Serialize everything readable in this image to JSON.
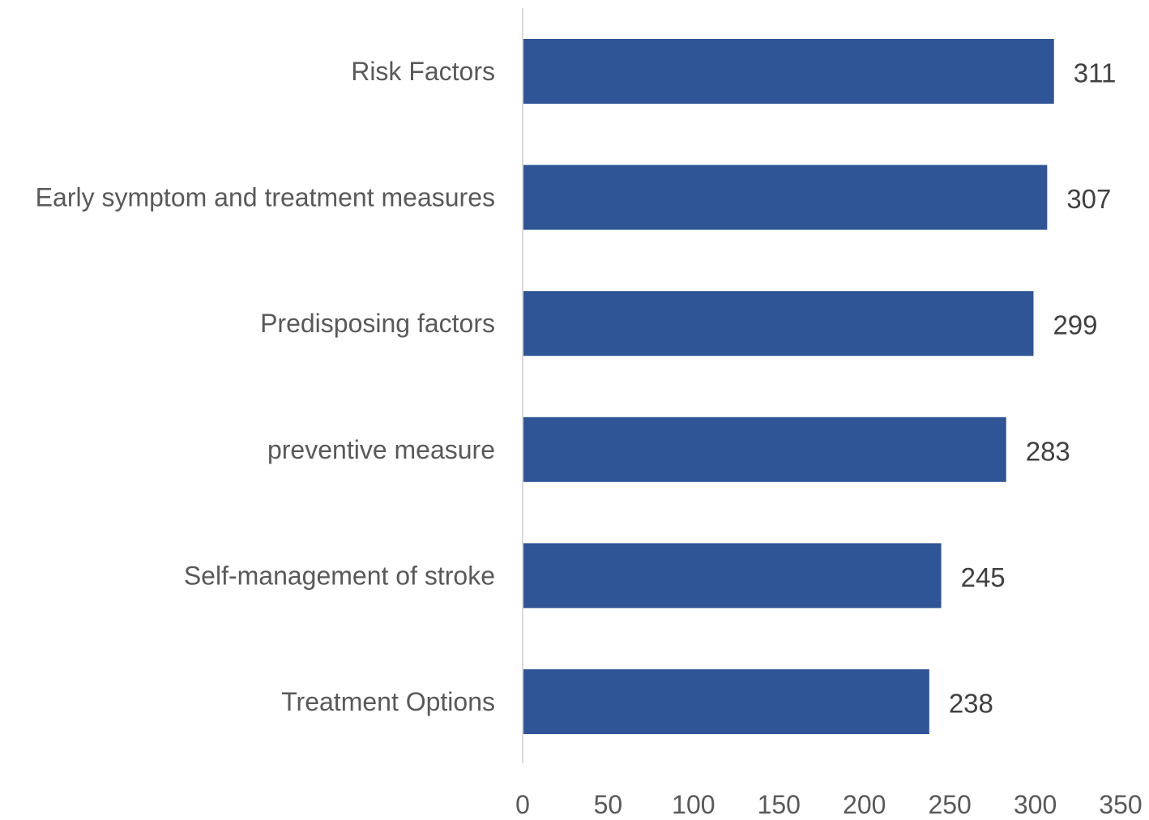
{
  "chart_data": {
    "type": "bar",
    "orientation": "horizontal",
    "title": "",
    "xlabel": "",
    "ylabel": "",
    "categories": [
      "Risk Factors",
      "Early symptom and treatment measures",
      "Predisposing factors",
      "preventive measure",
      "Self-management of stroke",
      "Treatment Options"
    ],
    "values": [
      311,
      307,
      299,
      283,
      245,
      238
    ],
    "xlim": [
      0,
      350
    ],
    "xticks": [
      0,
      50,
      100,
      150,
      200,
      250,
      300,
      350
    ],
    "grid": false,
    "legend": "none",
    "data_labels": true,
    "colors": {
      "bar": "#2F5597",
      "axis": "#D9D9D9"
    }
  }
}
